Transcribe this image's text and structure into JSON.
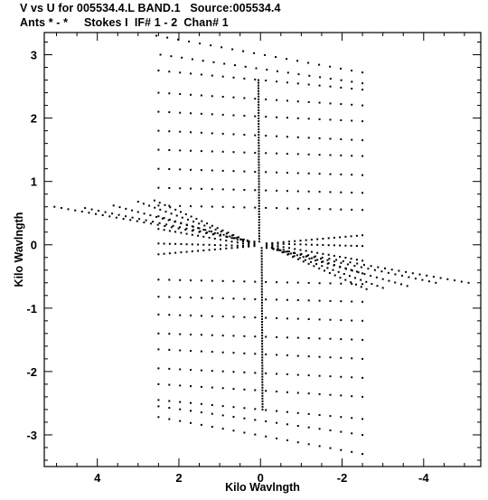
{
  "chart_data": {
    "type": "scatter",
    "title": "V vs U for 005534.4.L BAND.1   Source:005534.4",
    "subtitle": "Ants * - *     Stokes I  IF# 1 - 2  Chan# 1",
    "xlabel": "Kilo Wavlngth",
    "ylabel": "Kilo Wavlngth",
    "xlim": [
      5.3,
      -5.4
    ],
    "ylim": [
      -3.5,
      3.35
    ],
    "xticks": [
      4,
      2,
      0,
      -2,
      -4
    ],
    "yticks": [
      3,
      2,
      1,
      0,
      -1,
      -2,
      -3
    ],
    "x_tick_labels": [
      "4",
      "2",
      "0",
      "-2",
      "-4"
    ],
    "y_tick_labels": [
      "3",
      "2",
      "1",
      "0",
      "-1",
      "-2",
      "-3"
    ],
    "point_color": "#000000",
    "tracks": [
      {
        "u0": 2.55,
        "v0": 3.3,
        "u1": -2.5,
        "v1": 2.72,
        "n": 20
      },
      {
        "u0": 2.45,
        "v0": 3.0,
        "u1": -2.5,
        "v1": 2.55,
        "n": 20
      },
      {
        "u0": 2.5,
        "v0": 2.75,
        "u1": -2.5,
        "v1": 2.45,
        "n": 20
      },
      {
        "u0": 2.5,
        "v0": 2.4,
        "u1": -2.5,
        "v1": 2.2,
        "n": 20
      },
      {
        "u0": 2.5,
        "v0": 2.1,
        "u1": -2.5,
        "v1": 1.95,
        "n": 20
      },
      {
        "u0": 2.5,
        "v0": 1.8,
        "u1": -2.5,
        "v1": 1.65,
        "n": 20
      },
      {
        "u0": 2.5,
        "v0": 1.5,
        "u1": -2.5,
        "v1": 1.4,
        "n": 20
      },
      {
        "u0": 2.5,
        "v0": 1.2,
        "u1": -2.5,
        "v1": 1.1,
        "n": 20
      },
      {
        "u0": 2.5,
        "v0": 0.9,
        "u1": -2.5,
        "v1": 0.82,
        "n": 20
      },
      {
        "u0": 2.5,
        "v0": 0.62,
        "u1": -2.5,
        "v1": 0.55,
        "n": 20
      },
      {
        "u0": 2.5,
        "v0": -0.55,
        "u1": -2.5,
        "v1": -0.62,
        "n": 20
      },
      {
        "u0": 2.5,
        "v0": -0.82,
        "u1": -2.5,
        "v1": -0.9,
        "n": 20
      },
      {
        "u0": 2.5,
        "v0": -1.1,
        "u1": -2.5,
        "v1": -1.2,
        "n": 20
      },
      {
        "u0": 2.5,
        "v0": -1.4,
        "u1": -2.5,
        "v1": -1.5,
        "n": 20
      },
      {
        "u0": 2.5,
        "v0": -1.65,
        "u1": -2.5,
        "v1": -1.8,
        "n": 20
      },
      {
        "u0": 2.5,
        "v0": -1.95,
        "u1": -2.5,
        "v1": -2.1,
        "n": 20
      },
      {
        "u0": 2.5,
        "v0": -2.2,
        "u1": -2.5,
        "v1": -2.4,
        "n": 20
      },
      {
        "u0": 2.5,
        "v0": -2.45,
        "u1": -2.5,
        "v1": -2.75,
        "n": 20
      },
      {
        "u0": 2.5,
        "v0": -2.55,
        "u1": -2.5,
        "v1": -3.0,
        "n": 20
      },
      {
        "u0": 2.5,
        "v0": -2.72,
        "u1": -2.5,
        "v1": -3.3,
        "n": 20
      },
      {
        "u0": 5.05,
        "v0": 0.6,
        "u1": 0.15,
        "v1": 0.05,
        "n": 30
      },
      {
        "u0": 4.3,
        "v0": 0.58,
        "u1": 0.15,
        "v1": 0.04,
        "n": 26
      },
      {
        "u0": 3.6,
        "v0": 0.62,
        "u1": 0.15,
        "v1": 0.03,
        "n": 24
      },
      {
        "u0": 3.0,
        "v0": 0.68,
        "u1": 0.15,
        "v1": 0.02,
        "n": 22
      },
      {
        "u0": 2.6,
        "v0": 0.7,
        "u1": 0.15,
        "v1": 0.01,
        "n": 20
      },
      {
        "u0": 2.5,
        "v0": 0.45,
        "u1": 0.15,
        "v1": 0.0,
        "n": 18
      },
      {
        "u0": 2.5,
        "v0": 0.25,
        "u1": 0.15,
        "v1": -0.01,
        "n": 18
      },
      {
        "u0": 2.5,
        "v0": 0.02,
        "u1": 0.15,
        "v1": -0.02,
        "n": 18
      },
      {
        "u0": 2.5,
        "v0": -0.15,
        "u1": 0.15,
        "v1": -0.02,
        "n": 18
      },
      {
        "u0": -5.1,
        "v0": -0.6,
        "u1": -0.15,
        "v1": -0.05,
        "n": 30
      },
      {
        "u0": -4.3,
        "v0": -0.6,
        "u1": -0.15,
        "v1": -0.04,
        "n": 26
      },
      {
        "u0": -3.6,
        "v0": -0.65,
        "u1": -0.15,
        "v1": -0.03,
        "n": 24
      },
      {
        "u0": -3.0,
        "v0": -0.68,
        "u1": -0.15,
        "v1": -0.02,
        "n": 22
      },
      {
        "u0": -2.6,
        "v0": -0.7,
        "u1": -0.15,
        "v1": -0.01,
        "n": 20
      },
      {
        "u0": -2.5,
        "v0": -0.45,
        "u1": -0.15,
        "v1": 0.0,
        "n": 18
      },
      {
        "u0": -2.5,
        "v0": -0.25,
        "u1": -0.15,
        "v1": 0.01,
        "n": 18
      },
      {
        "u0": -2.5,
        "v0": -0.02,
        "u1": -0.15,
        "v1": 0.02,
        "n": 18
      },
      {
        "u0": -2.5,
        "v0": 0.15,
        "u1": -0.15,
        "v1": 0.02,
        "n": 18
      },
      {
        "u0": 0.05,
        "v0": 2.6,
        "u1": 0.03,
        "v1": 0.05,
        "n": 60
      },
      {
        "u0": -0.05,
        "v0": -2.6,
        "u1": -0.03,
        "v1": -0.05,
        "n": 60
      }
    ]
  }
}
